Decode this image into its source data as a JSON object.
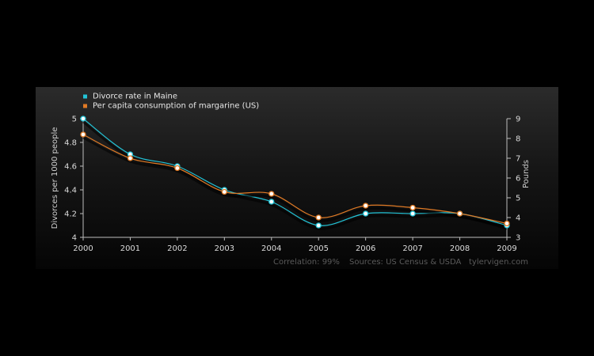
{
  "chart_data": {
    "type": "line",
    "title": "",
    "x": [
      "2000",
      "2001",
      "2002",
      "2003",
      "2004",
      "2005",
      "2006",
      "2007",
      "2008",
      "2009"
    ],
    "y_left": {
      "label": "Divorces per 1000 people",
      "range": [
        4,
        5
      ],
      "ticks": [
        "4",
        "4.2",
        "4.4",
        "4.6",
        "4.8",
        "5"
      ]
    },
    "y_right": {
      "label": "Pounds",
      "range": [
        3,
        9
      ],
      "ticks": [
        "3",
        "4",
        "5",
        "6",
        "7",
        "8",
        "9"
      ]
    },
    "series": [
      {
        "name": "Divorce rate in Maine",
        "axis": "left",
        "color": "#22c3d6",
        "values": [
          5.0,
          4.7,
          4.6,
          4.4,
          4.3,
          4.1,
          4.2,
          4.2,
          4.2,
          4.1
        ]
      },
      {
        "name": "Per capita consumption of margarine (US)",
        "axis": "right",
        "color": "#e07a25",
        "values": [
          8.2,
          7.0,
          6.5,
          5.3,
          5.2,
          4.0,
          4.6,
          4.5,
          4.2,
          3.7
        ]
      }
    ],
    "legend": "top-left",
    "grid": false
  },
  "footer": {
    "correlation": "Correlation: 99%",
    "sources": "Sources: US Census & USDA",
    "site": "tylervigen.com"
  }
}
